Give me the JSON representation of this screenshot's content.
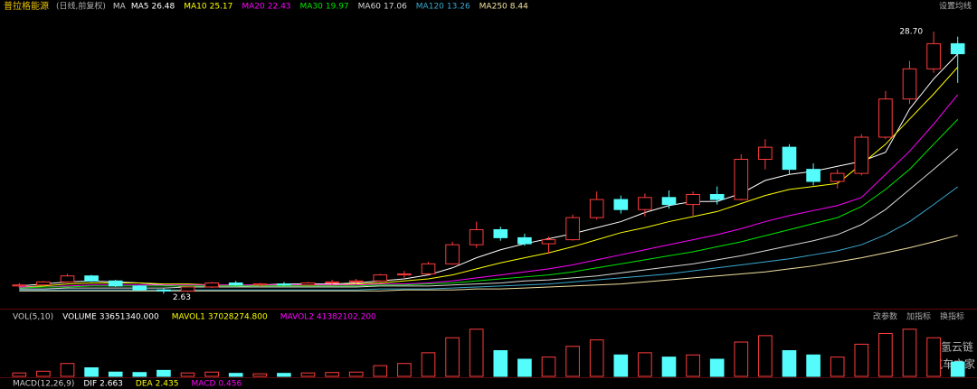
{
  "chart_data": {
    "type": "candlestick",
    "title": "普拉格能源",
    "subtitle": "(日线,前复权)",
    "ma_prefix": "MA",
    "settings_button": "设置均线",
    "ylim": [
      1.5,
      30.5
    ],
    "up_color": "#ff3c3c",
    "down_color": "#54fcfc",
    "candles": {
      "open": [
        3.4,
        3.5,
        3.8,
        4.4,
        3.9,
        3.4,
        3.0,
        2.9,
        3.3,
        3.7,
        3.5,
        3.6,
        3.5,
        3.7,
        3.8,
        3.9,
        4.5,
        4.6,
        5.6,
        7.5,
        9.0,
        8.2,
        7.6,
        8.0,
        10.2,
        12.0,
        11.0,
        12.2,
        11.5,
        12.5,
        12.0,
        16.0,
        17.2,
        15.0,
        13.8,
        14.6,
        18.2,
        22.0,
        25.0,
        27.5
      ],
      "high": [
        3.7,
        3.9,
        4.6,
        4.5,
        4.0,
        3.5,
        3.2,
        3.4,
        3.8,
        3.9,
        3.7,
        3.8,
        3.8,
        4.0,
        4.1,
        4.6,
        4.9,
        5.8,
        7.8,
        9.8,
        9.3,
        8.6,
        8.3,
        10.5,
        12.8,
        12.4,
        12.6,
        12.9,
        12.8,
        13.3,
        16.5,
        18.0,
        17.5,
        15.6,
        15.0,
        18.5,
        22.8,
        25.8,
        28.7,
        28.2
      ],
      "low": [
        3.2,
        3.4,
        3.7,
        3.8,
        3.3,
        2.9,
        2.63,
        2.8,
        3.2,
        3.4,
        3.3,
        3.4,
        3.4,
        3.5,
        3.6,
        3.8,
        4.2,
        4.5,
        5.5,
        7.2,
        7.9,
        7.4,
        6.6,
        7.9,
        10.0,
        10.6,
        10.3,
        11.1,
        10.4,
        11.5,
        11.9,
        15.0,
        14.5,
        13.4,
        13.1,
        14.4,
        18.0,
        21.5,
        24.6,
        23.6
      ],
      "close": [
        3.5,
        3.8,
        4.4,
        3.9,
        3.4,
        3.0,
        2.9,
        3.3,
        3.7,
        3.5,
        3.6,
        3.5,
        3.7,
        3.8,
        3.9,
        4.5,
        4.6,
        5.6,
        7.5,
        9.0,
        8.2,
        7.6,
        8.0,
        10.2,
        12.0,
        11.0,
        12.2,
        11.5,
        12.5,
        12.0,
        16.0,
        17.2,
        15.0,
        13.8,
        14.6,
        18.2,
        22.0,
        25.0,
        27.5,
        26.5
      ]
    },
    "series": [
      {
        "name": "MA5",
        "color": "#ffffff",
        "last": 26.48,
        "values": [
          3.4,
          3.6,
          3.8,
          3.9,
          3.8,
          3.7,
          3.5,
          3.3,
          3.3,
          3.3,
          3.5,
          3.6,
          3.6,
          3.6,
          3.7,
          3.9,
          4.1,
          4.5,
          5.2,
          6.2,
          7.0,
          7.6,
          8.1,
          8.6,
          9.2,
          9.8,
          10.7,
          11.4,
          11.8,
          11.8,
          12.6,
          13.9,
          14.5,
          14.8,
          15.3,
          15.8,
          16.7,
          21.0,
          24.0,
          26.48
        ]
      },
      {
        "name": "MA10",
        "color": "#ffff00",
        "last": 25.17,
        "values": [
          3.3,
          3.4,
          3.6,
          3.7,
          3.7,
          3.7,
          3.6,
          3.6,
          3.5,
          3.5,
          3.5,
          3.5,
          3.5,
          3.5,
          3.6,
          3.7,
          3.9,
          4.1,
          4.5,
          5.1,
          5.7,
          6.2,
          6.7,
          7.3,
          8.0,
          8.7,
          9.2,
          9.8,
          10.3,
          10.8,
          11.6,
          12.4,
          13.0,
          13.3,
          13.6,
          15.5,
          17.5,
          20.0,
          22.5,
          25.17
        ]
      },
      {
        "name": "MA20",
        "color": "#ff00ff",
        "last": 22.43,
        "values": [
          3.3,
          3.3,
          3.4,
          3.5,
          3.5,
          3.5,
          3.5,
          3.5,
          3.5,
          3.5,
          3.5,
          3.5,
          3.5,
          3.5,
          3.5,
          3.6,
          3.6,
          3.7,
          3.9,
          4.2,
          4.5,
          4.8,
          5.1,
          5.5,
          6.0,
          6.5,
          7.0,
          7.5,
          8.0,
          8.5,
          9.1,
          9.8,
          10.4,
          10.9,
          11.4,
          12.2,
          14.5,
          16.8,
          19.5,
          22.43
        ]
      },
      {
        "name": "MA30",
        "color": "#00e600",
        "last": 19.97,
        "values": [
          3.2,
          3.3,
          3.3,
          3.4,
          3.4,
          3.4,
          3.4,
          3.4,
          3.4,
          3.4,
          3.4,
          3.4,
          3.4,
          3.4,
          3.4,
          3.5,
          3.5,
          3.6,
          3.7,
          3.9,
          4.1,
          4.3,
          4.5,
          4.8,
          5.2,
          5.6,
          6.0,
          6.4,
          6.8,
          7.3,
          7.8,
          8.4,
          9.0,
          9.6,
          10.2,
          11.3,
          13.0,
          15.0,
          17.5,
          19.97
        ]
      },
      {
        "name": "MA60",
        "color": "#d8d8d8",
        "last": 17.06,
        "values": [
          3.1,
          3.1,
          3.2,
          3.2,
          3.2,
          3.2,
          3.2,
          3.3,
          3.3,
          3.3,
          3.3,
          3.3,
          3.3,
          3.3,
          3.3,
          3.4,
          3.4,
          3.4,
          3.5,
          3.6,
          3.7,
          3.9,
          4.0,
          4.2,
          4.4,
          4.7,
          5.0,
          5.3,
          5.6,
          6.0,
          6.4,
          6.9,
          7.4,
          7.9,
          8.5,
          9.5,
          11.0,
          13.0,
          15.0,
          17.06
        ]
      },
      {
        "name": "MA120",
        "color": "#3aa8d0",
        "last": 13.26,
        "values": [
          3.0,
          3.0,
          3.0,
          3.0,
          3.0,
          3.0,
          3.0,
          3.0,
          3.0,
          3.0,
          3.0,
          3.0,
          3.0,
          3.0,
          3.0,
          3.1,
          3.1,
          3.1,
          3.2,
          3.3,
          3.4,
          3.5,
          3.6,
          3.8,
          4.0,
          4.2,
          4.4,
          4.6,
          4.9,
          5.2,
          5.5,
          5.8,
          6.1,
          6.5,
          6.9,
          7.5,
          8.5,
          9.8,
          11.5,
          13.26
        ]
      },
      {
        "name": "MA250",
        "color": "#f0e0a0",
        "last": 8.44,
        "values": [
          2.9,
          2.9,
          2.9,
          2.9,
          2.9,
          2.9,
          2.9,
          2.9,
          2.9,
          2.9,
          2.9,
          2.9,
          2.9,
          2.9,
          2.9,
          2.9,
          3.0,
          3.0,
          3.0,
          3.1,
          3.1,
          3.2,
          3.3,
          3.4,
          3.5,
          3.6,
          3.8,
          4.0,
          4.2,
          4.4,
          4.6,
          4.8,
          5.1,
          5.4,
          5.8,
          6.2,
          6.7,
          7.2,
          7.8,
          8.44
        ]
      }
    ],
    "max_label": {
      "value": 28.7,
      "label": "28.70"
    },
    "min_label": 2.63,
    "volume": {
      "title": "VOL(5,10)",
      "ylim": [
        0,
        120000000
      ],
      "values": [
        8000000,
        12000000,
        30000000,
        20000000,
        10000000,
        9000000,
        14000000,
        8000000,
        10000000,
        7000000,
        6000000,
        7000000,
        8000000,
        9000000,
        10000000,
        25000000,
        30000000,
        55000000,
        90000000,
        110000000,
        60000000,
        40000000,
        45000000,
        70000000,
        85000000,
        50000000,
        55000000,
        45000000,
        50000000,
        40000000,
        80000000,
        95000000,
        60000000,
        50000000,
        45000000,
        75000000,
        100000000,
        110000000,
        90000000,
        33651340
      ],
      "indicators": [
        {
          "name": "VOLUME",
          "value": 33651340,
          "label": "33651340.000",
          "color": "#ffffff"
        },
        {
          "name": "MAVOL1",
          "value": 37028274.8,
          "label": "37028274.800",
          "color": "#ffff00"
        },
        {
          "name": "MAVOL2",
          "value": 41382102.2,
          "label": "41382102.200",
          "color": "#ff00ff"
        }
      ],
      "buttons": [
        "改参数",
        "加指标",
        "换指标"
      ]
    },
    "macd": {
      "title": "MACD(12,26,9)",
      "indicators": [
        {
          "name": "DIF",
          "value": 2.663,
          "color": "#ffffff"
        },
        {
          "name": "DEA",
          "value": 2.435,
          "color": "#ffff00"
        },
        {
          "name": "MACD",
          "value": 0.456,
          "color": "#ff00ff"
        }
      ]
    },
    "watermark": [
      "氢云链",
      "汽车之家"
    ]
  }
}
